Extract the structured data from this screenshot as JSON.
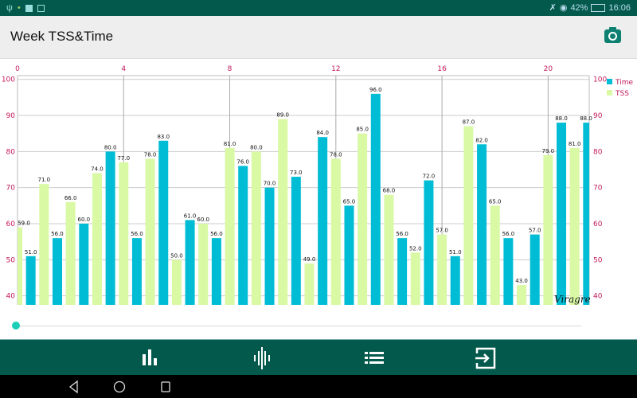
{
  "status_bar": {
    "battery": "42%",
    "time": "16:06",
    "icons": [
      "usb-icon",
      "notification-icon",
      "mail-icon",
      "keyboard-icon",
      "mute-icon",
      "wifi-icon",
      "battery-icon"
    ]
  },
  "header": {
    "title": "Week TSS&Time",
    "action_icon": "camera-icon"
  },
  "watermark": "Viragre",
  "bottom_nav": {
    "icons": [
      "bar-chart-icon",
      "waveform-icon",
      "list-icon",
      "exit-icon"
    ]
  },
  "system_nav": {
    "icons": [
      "back-icon",
      "home-icon",
      "recents-icon"
    ]
  },
  "slider": {
    "value": 0
  },
  "colors": {
    "time": "#00bcd4",
    "tss": "#d9f9a5",
    "axis_labels": "#c2185b",
    "bars_chrome": "#035a4c"
  },
  "chart_data": {
    "type": "bar",
    "title": "",
    "xlabel": "",
    "ylabel": "",
    "x_axis_position": "top",
    "x_ticks": [
      "0",
      "4",
      "8",
      "12",
      "16",
      "20"
    ],
    "y_ticks": [
      "40",
      "50",
      "60",
      "70",
      "80",
      "90",
      "100"
    ],
    "xlim": [
      0,
      21.55
    ],
    "ylim": [
      37.5,
      100
    ],
    "grid": true,
    "legend": "top-right",
    "value_labels": true,
    "series": [
      {
        "name": "Time",
        "x": [
          0.5,
          1.5,
          2.5,
          3.5,
          4.5,
          5.5,
          6.5,
          7.5,
          8.5,
          9.5,
          10.5,
          11.5,
          12.5,
          13.5,
          14.5,
          15.5,
          16.5,
          17.5,
          18.5,
          19.5,
          20.5,
          21.5
        ],
        "values": [
          51,
          56,
          60,
          80,
          56,
          83,
          61,
          56,
          76,
          70,
          73,
          84,
          65,
          96,
          56,
          72,
          51,
          82,
          56,
          57,
          88,
          88
        ]
      },
      {
        "name": "TSS",
        "x": [
          0,
          1,
          2,
          3,
          4,
          5,
          6,
          7,
          8,
          9,
          10,
          11,
          12,
          13,
          14,
          15,
          16,
          17,
          18,
          19,
          20,
          21
        ],
        "values": [
          59,
          71,
          66,
          74,
          77,
          78,
          50,
          60,
          81,
          80,
          89,
          49,
          78,
          85,
          68,
          52,
          57,
          87,
          65,
          43,
          79,
          81
        ]
      }
    ]
  }
}
